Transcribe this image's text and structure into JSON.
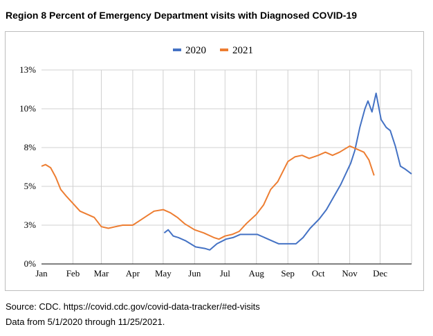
{
  "title": "Region 8 Percent of Emergency Department visits with Diagnosed COVID-19",
  "footer": {
    "source": "Source: CDC. https://covid.cdc.gov/covid-data-tracker/#ed-visits",
    "range": "Data from 5/1/2020 through 11/25/2021."
  },
  "chart_data": {
    "type": "line",
    "title": "Region 8 Percent of Emergency Department visits with Diagnosed COVID-19",
    "xlabel": "",
    "ylabel": "",
    "x_unit": "day of year",
    "xlim": [
      0,
      365
    ],
    "ylim": [
      0,
      12.5
    ],
    "yticks": [
      0,
      2.5,
      5,
      7.5,
      10,
      12.5
    ],
    "ytick_labels": [
      "0%",
      "3%",
      "5%",
      "8%",
      "10%",
      "13%"
    ],
    "xticks": [
      0,
      31,
      59,
      90,
      120,
      151,
      181,
      212,
      243,
      273,
      304,
      334
    ],
    "xtick_labels": [
      "Jan",
      "Feb",
      "Mar",
      "Apr",
      "May",
      "Jun",
      "Jul",
      "Aug",
      "Sep",
      "Oct",
      "Nov",
      "Dec"
    ],
    "grid": true,
    "legend_position": "top-center",
    "series": [
      {
        "name": "2020",
        "color": "#4472c4",
        "x": [
          121,
          125,
          130,
          135,
          142,
          152,
          161,
          166,
          173,
          182,
          189,
          196,
          203,
          213,
          220,
          227,
          234,
          244,
          251,
          258,
          265,
          274,
          281,
          288,
          295,
          305,
          309,
          314,
          319,
          322,
          326,
          330,
          335,
          340,
          344,
          349,
          354,
          359,
          365
        ],
        "y": [
          2.0,
          2.2,
          1.8,
          1.7,
          1.5,
          1.1,
          1.0,
          0.9,
          1.3,
          1.6,
          1.7,
          1.9,
          1.9,
          1.9,
          1.7,
          1.5,
          1.3,
          1.3,
          1.3,
          1.7,
          2.3,
          2.9,
          3.5,
          4.3,
          5.1,
          6.5,
          7.3,
          8.8,
          10.0,
          10.5,
          9.8,
          11.0,
          9.3,
          8.8,
          8.6,
          7.6,
          6.3,
          6.1,
          5.8
        ]
      },
      {
        "name": "2021",
        "color": "#ed7d31",
        "x": [
          0,
          4,
          9,
          14,
          19,
          24,
          31,
          38,
          45,
          52,
          59,
          66,
          73,
          80,
          90,
          97,
          104,
          111,
          120,
          127,
          134,
          141,
          151,
          160,
          170,
          175,
          181,
          188,
          195,
          202,
          212,
          219,
          226,
          233,
          243,
          250,
          257,
          264,
          273,
          280,
          287,
          294,
          304,
          311,
          318,
          323,
          328
        ],
        "y": [
          6.3,
          6.4,
          6.2,
          5.6,
          4.8,
          4.4,
          3.9,
          3.4,
          3.2,
          3.0,
          2.4,
          2.3,
          2.4,
          2.5,
          2.5,
          2.8,
          3.1,
          3.4,
          3.5,
          3.3,
          3.0,
          2.6,
          2.2,
          2.0,
          1.7,
          1.6,
          1.8,
          1.9,
          2.1,
          2.6,
          3.2,
          3.8,
          4.8,
          5.3,
          6.6,
          6.9,
          7.0,
          6.8,
          7.0,
          7.2,
          7.0,
          7.2,
          7.6,
          7.4,
          7.2,
          6.7,
          5.7
        ]
      }
    ]
  }
}
